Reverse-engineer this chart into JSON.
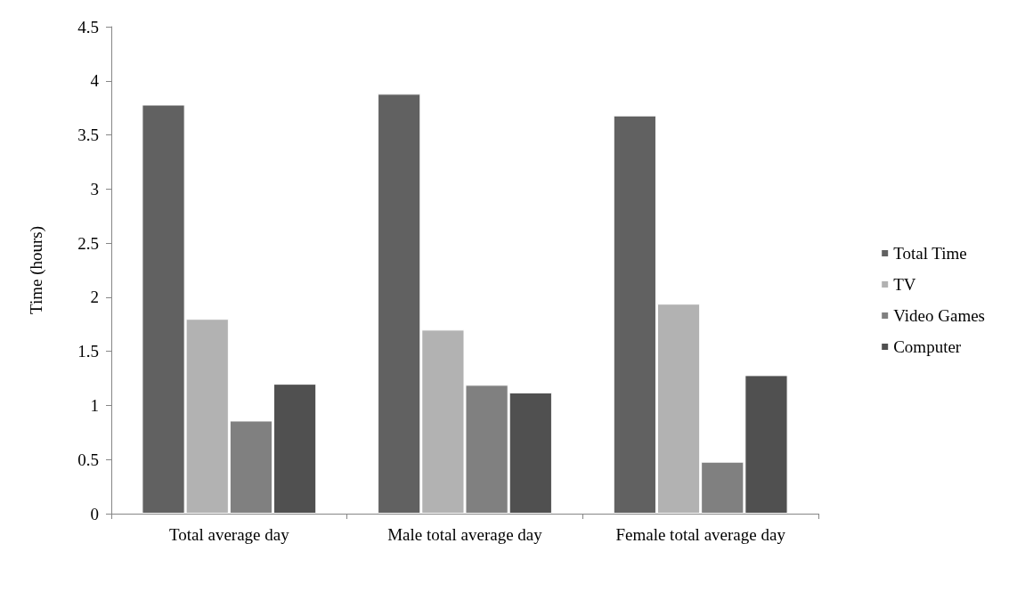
{
  "chart_data": {
    "type": "bar",
    "ylabel": "Time (hours)",
    "categories": [
      "Total average day",
      "Male total average day",
      "Female total average day"
    ],
    "series": [
      {
        "name": "Total Time",
        "color": "#616161",
        "values": [
          3.78,
          3.88,
          3.68
        ]
      },
      {
        "name": "TV",
        "color": "#b2b2b2",
        "values": [
          1.8,
          1.7,
          1.94
        ]
      },
      {
        "name": "Video Games",
        "color": "#808080",
        "values": [
          0.86,
          1.19,
          0.48
        ]
      },
      {
        "name": "Computer",
        "color": "#505050",
        "values": [
          1.2,
          1.12,
          1.28
        ]
      }
    ],
    "ylim": [
      0,
      4.5
    ],
    "yticks": [
      0,
      0.5,
      1,
      1.5,
      2,
      2.5,
      3,
      3.5,
      4,
      4.5
    ],
    "grid": false,
    "legend": "right"
  }
}
